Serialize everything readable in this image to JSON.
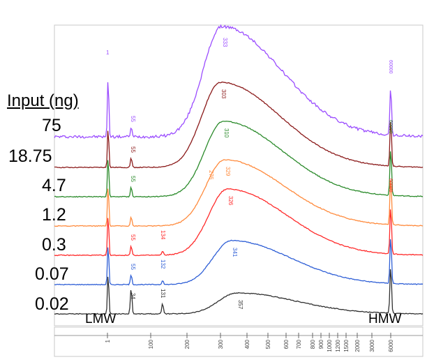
{
  "chart_data": {
    "type": "line",
    "title": "",
    "legend_title": "Input (ng)",
    "series": [
      {
        "name": "75",
        "color": "#9b4dff",
        "peak_label": "333",
        "lmw_label": "55",
        "hmw_label": "60000"
      },
      {
        "name": "18.75",
        "color": "#8b1a1a",
        "peak_label": "303",
        "lmw_label": "55",
        "hmw_label": ""
      },
      {
        "name": "4.7",
        "color": "#2a8a2a",
        "peak_label": "310",
        "lmw_label": "55",
        "hmw_label": "60000"
      },
      {
        "name": "1.2",
        "color": "#ff8a3c",
        "peak_label": "329",
        "secondary_label": "276",
        "lmw_label": "",
        "hmw_label": ""
      },
      {
        "name": "0.3",
        "color": "#ff2a2a",
        "peak_label": "326",
        "lmw_label": "55",
        "extra_label": "134",
        "hmw_label": "60000"
      },
      {
        "name": "0.07",
        "color": "#2f5fd6",
        "peak_label": "341",
        "lmw_label": "55",
        "extra_label": "132",
        "hmw_label": ""
      },
      {
        "name": "0.02",
        "color": "#303030",
        "peak_label": "357",
        "lmw_label": "34",
        "extra_label": "131",
        "hmw_label": ""
      }
    ],
    "x_ticks": [
      "1",
      "100",
      "200",
      "300",
      "400",
      "500",
      "600",
      "700",
      "800",
      "900",
      "1000",
      "1200",
      "1500",
      "2000",
      "3000",
      "6000"
    ],
    "markers": {
      "lmw": "LMW",
      "hmw": "HMW"
    },
    "grid": false
  }
}
